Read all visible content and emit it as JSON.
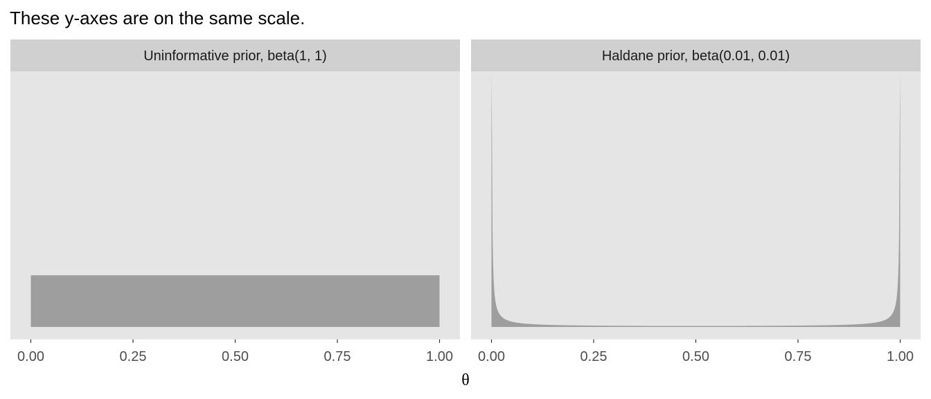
{
  "chart_data": {
    "type": "area",
    "title": "These y-axes are on the same scale.",
    "xlabel": "θ",
    "ylabel": "",
    "shared_y": true,
    "ylim": [
      0,
      5
    ],
    "grid": false,
    "x_ticks": [
      0,
      0.25,
      0.5,
      0.75,
      1
    ],
    "x_tick_labels": [
      "0.00",
      "0.25",
      "0.50",
      "0.75",
      "1.00"
    ],
    "xlim": [
      0,
      1
    ],
    "fill_color": "#9e9e9e",
    "panel_bg_color": "#e5e5e5",
    "strip_bg_color": "#d0d0d0",
    "panels": [
      {
        "strip": "Uninformative prior, beta(1, 1)",
        "distribution": "beta",
        "alpha": 1,
        "beta": 1
      },
      {
        "strip": "Haldane prior, beta(0.01, 0.01)",
        "distribution": "beta",
        "alpha": 0.01,
        "beta": 0.01
      }
    ]
  }
}
